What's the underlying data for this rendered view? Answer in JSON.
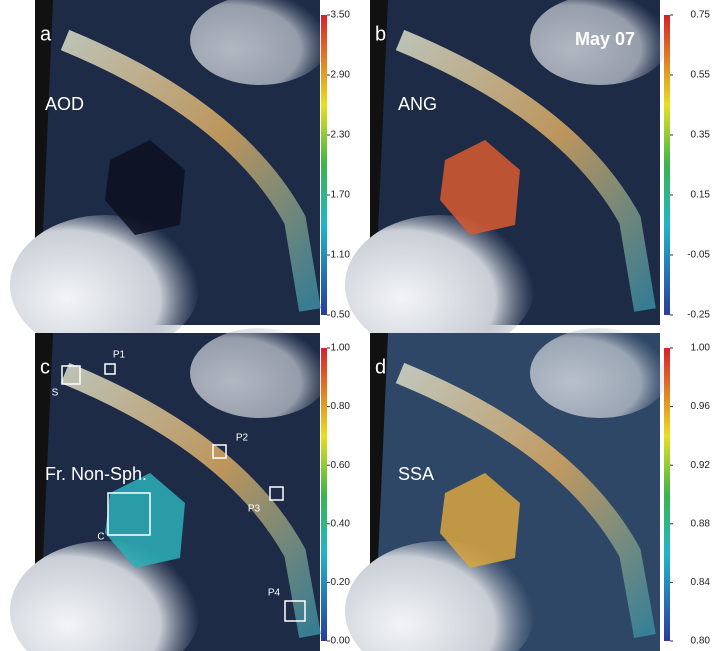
{
  "panels": [
    {
      "letter": "a",
      "label": "AOD",
      "colorbar": {
        "lim": [
          0.5,
          3.5
        ],
        "ticks": [
          {
            "value": 3.5,
            "label": "3.50"
          },
          {
            "value": 2.9,
            "label": "2.90"
          },
          {
            "value": 2.3,
            "label": "2.30"
          },
          {
            "value": 1.7,
            "label": "1.70"
          },
          {
            "value": 1.1,
            "label": "1.10"
          },
          {
            "value": 0.5,
            "label": "0.50"
          }
        ]
      }
    },
    {
      "letter": "b",
      "label": "ANG",
      "date": "May 07",
      "colorbar": {
        "lim": [
          -0.25,
          0.75
        ],
        "ticks": [
          {
            "value": 0.75,
            "label": "0.75"
          },
          {
            "value": 0.55,
            "label": "0.55"
          },
          {
            "value": 0.35,
            "label": "0.35"
          },
          {
            "value": 0.15,
            "label": "0.15"
          },
          {
            "value": -0.05,
            "label": "-0.05"
          },
          {
            "value": -0.25,
            "label": "-0.25"
          }
        ]
      }
    },
    {
      "letter": "c",
      "label": "Fr. Non-Sph.",
      "markers": [
        "S",
        "P1",
        "P2",
        "P3",
        "P4",
        "C"
      ],
      "colorbar": {
        "lim": [
          0,
          1
        ],
        "ticks": [
          {
            "value": 1,
            "label": "1.00"
          },
          {
            "value": 0.8,
            "label": "0.80"
          },
          {
            "value": 0.6,
            "label": "0.60"
          },
          {
            "value": 0.4,
            "label": "0.40"
          },
          {
            "value": 0.2,
            "label": "0.20"
          },
          {
            "value": 0,
            "label": "0.00"
          }
        ]
      }
    },
    {
      "letter": "d",
      "label": "SSA",
      "colorbar": {
        "lim": [
          0.8,
          1
        ],
        "ticks": [
          {
            "value": 1,
            "label": "1.00"
          },
          {
            "value": 0.96,
            "label": "0.96"
          },
          {
            "value": 0.92,
            "label": "0.92"
          },
          {
            "value": 0.88,
            "label": "0.88"
          },
          {
            "value": 0.84,
            "label": "0.84"
          },
          {
            "value": 0.8,
            "label": "0.80"
          }
        ]
      }
    }
  ]
}
